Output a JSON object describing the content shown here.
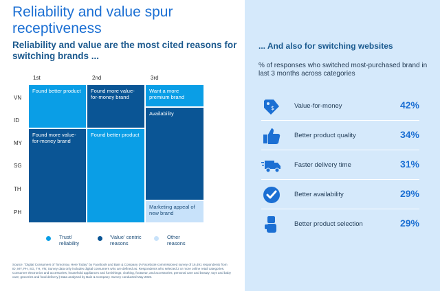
{
  "left": {
    "title": "Reliability and value spur receptiveness",
    "subtitle": "Reliability and value are the most cited reasons for switching brands ...",
    "columns": [
      "1st",
      "2nd",
      "3rd"
    ],
    "rows": [
      "VN",
      "ID",
      "MY",
      "SG",
      "TH",
      "PH"
    ],
    "cells": {
      "c1a": "Found better product",
      "c1b": "Found more value-for-money brand",
      "c2a": "Found more value-for-money brand",
      "c2b": "Found better product",
      "c3a": "Want a more premium brand",
      "c3b": "Availability",
      "c3c": "Marketing appeal of new brand"
    },
    "legend": [
      "Trust/ reliability",
      "'Value' centric reasons",
      "Other reasons"
    ],
    "source": "Source: \"Digital Consumers of Tomorrow, Here Today\" by Facebook and Bain & Company (A Facebook-commissioned survey of 16,491 respondents from ID, MY, PH, SG, TH, VN; Survey data only includes digital consumers who are defined as: Respondents who selected 2 or more online retail categories. Consumer electronics and accessories; household appliances and furnishings; clothing, footwear, and accessories; personal care and beauty; toys and baby care; groceries and food delivery.) Data analysed by Bain & Company. Survey conducted May 2020."
  },
  "right": {
    "title": "... And also for switching websites",
    "subtitle": "% of responses who switched most-purchased brand in last 3 months across categories"
  },
  "colors": {
    "trust": "#0a9ee6",
    "value": "#0a5595",
    "other": "#c8e2fa",
    "accent": "#1b6fd3"
  },
  "chart_data": [
    {
      "type": "table",
      "title": "Reliability and value are the most cited reasons for switching brands ...",
      "columns": [
        "1st",
        "2nd",
        "3rd"
      ],
      "rows": [
        "VN",
        "ID",
        "MY",
        "SG",
        "TH",
        "PH"
      ],
      "data": {
        "1st": {
          "VN": "Found better product",
          "ID": "Found better product",
          "MY": "Found more value-for-money brand",
          "SG": "Found more value-for-money brand",
          "TH": "Found more value-for-money brand",
          "PH": "Found more value-for-money brand"
        },
        "2nd": {
          "VN": "Found more value-for-money brand",
          "ID": "Found more value-for-money brand",
          "MY": "Found better product",
          "SG": "Found better product",
          "TH": "Found better product",
          "PH": "Found better product"
        },
        "3rd": {
          "VN": "Want a more premium brand",
          "ID": "Availability",
          "MY": "Availability",
          "SG": "Availability",
          "TH": "Availability",
          "PH": "Marketing appeal of new brand"
        }
      },
      "legend": [
        "Trust/ reliability",
        "'Value' centric reasons",
        "Other reasons"
      ]
    },
    {
      "type": "bar",
      "title": "... And also for switching websites",
      "categories": [
        "Value-for-money",
        "Better product quality",
        "Faster delivery time",
        "Better availability",
        "Better product selection"
      ],
      "values": [
        42,
        34,
        31,
        29,
        29
      ],
      "labels": [
        "42%",
        "34%",
        "31%",
        "29%",
        "29%"
      ],
      "icons": [
        "price-tag-icon",
        "thumbs-up-icon",
        "delivery-truck-icon",
        "checkmark-circle-icon",
        "hand-icon"
      ],
      "ylabel": "% of responses"
    }
  ]
}
